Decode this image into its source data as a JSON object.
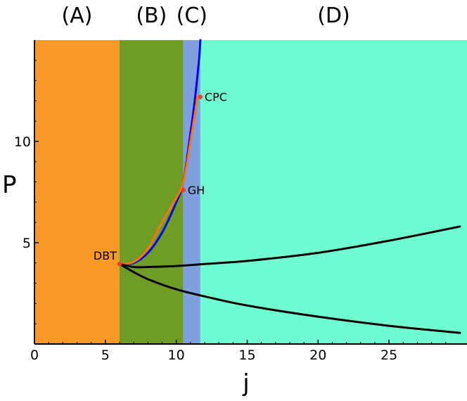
{
  "chart_data": {
    "type": "line",
    "title": "",
    "xlabel": "j",
    "ylabel": "P",
    "xlim": [
      0,
      30.5
    ],
    "ylim": [
      0,
      15
    ],
    "x_ticks": [
      0,
      5,
      10,
      15,
      20,
      25
    ],
    "y_ticks": [
      5,
      10
    ],
    "grid": false,
    "regions": [
      {
        "label": "(A)",
        "x_range": [
          0,
          6.0
        ],
        "color": "#f99a27"
      },
      {
        "label": "(B)",
        "x_range": [
          6.0,
          10.5
        ],
        "color": "#6f9c24"
      },
      {
        "label": "(C)",
        "x_range": [
          10.5,
          11.7
        ],
        "color": "#7fa0dd"
      },
      {
        "label": "(D)",
        "x_range": [
          11.7,
          30.5
        ],
        "color": "#6ffcd2"
      }
    ],
    "series": [
      {
        "color": "#0000ff",
        "x": [
          6.0,
          7.0,
          8.0,
          9.0,
          10.0,
          10.5,
          11.0,
          11.3,
          11.6,
          11.7
        ],
        "y": [
          3.95,
          4.0,
          4.5,
          5.5,
          7.0,
          8.0,
          10.4,
          12.0,
          14.0,
          15.0
        ]
      },
      {
        "color": "#ff7700",
        "x": [
          6.0,
          7.0,
          8.0,
          9.0,
          10.0,
          10.5,
          11.0,
          11.5
        ],
        "y": [
          3.95,
          4.05,
          4.7,
          6.0,
          7.2,
          8.0,
          10.0,
          12.2
        ]
      },
      {
        "color": "#000000",
        "x": [
          6.0,
          7.0,
          8.0,
          10.0,
          12.0,
          15.0,
          20.0,
          25.0,
          30.0
        ],
        "y": [
          3.95,
          3.8,
          3.8,
          3.85,
          3.95,
          4.1,
          4.5,
          5.1,
          5.8
        ]
      },
      {
        "color": "#000000",
        "x": [
          6.0,
          7.0,
          8.0,
          10.0,
          12.0,
          15.0,
          20.0,
          25.0,
          30.0
        ],
        "y": [
          3.95,
          3.55,
          3.2,
          2.7,
          2.35,
          1.9,
          1.35,
          0.9,
          0.55
        ]
      }
    ],
    "points": [
      {
        "label": "DBT",
        "x": 6.0,
        "y": 3.95,
        "color": "#ff3b1f"
      },
      {
        "label": "GH",
        "x": 10.5,
        "y": 7.6,
        "color": "#ff3b1f"
      },
      {
        "label": "CPC",
        "x": 11.7,
        "y": 12.2,
        "color": "#ff3b1f"
      }
    ]
  }
}
